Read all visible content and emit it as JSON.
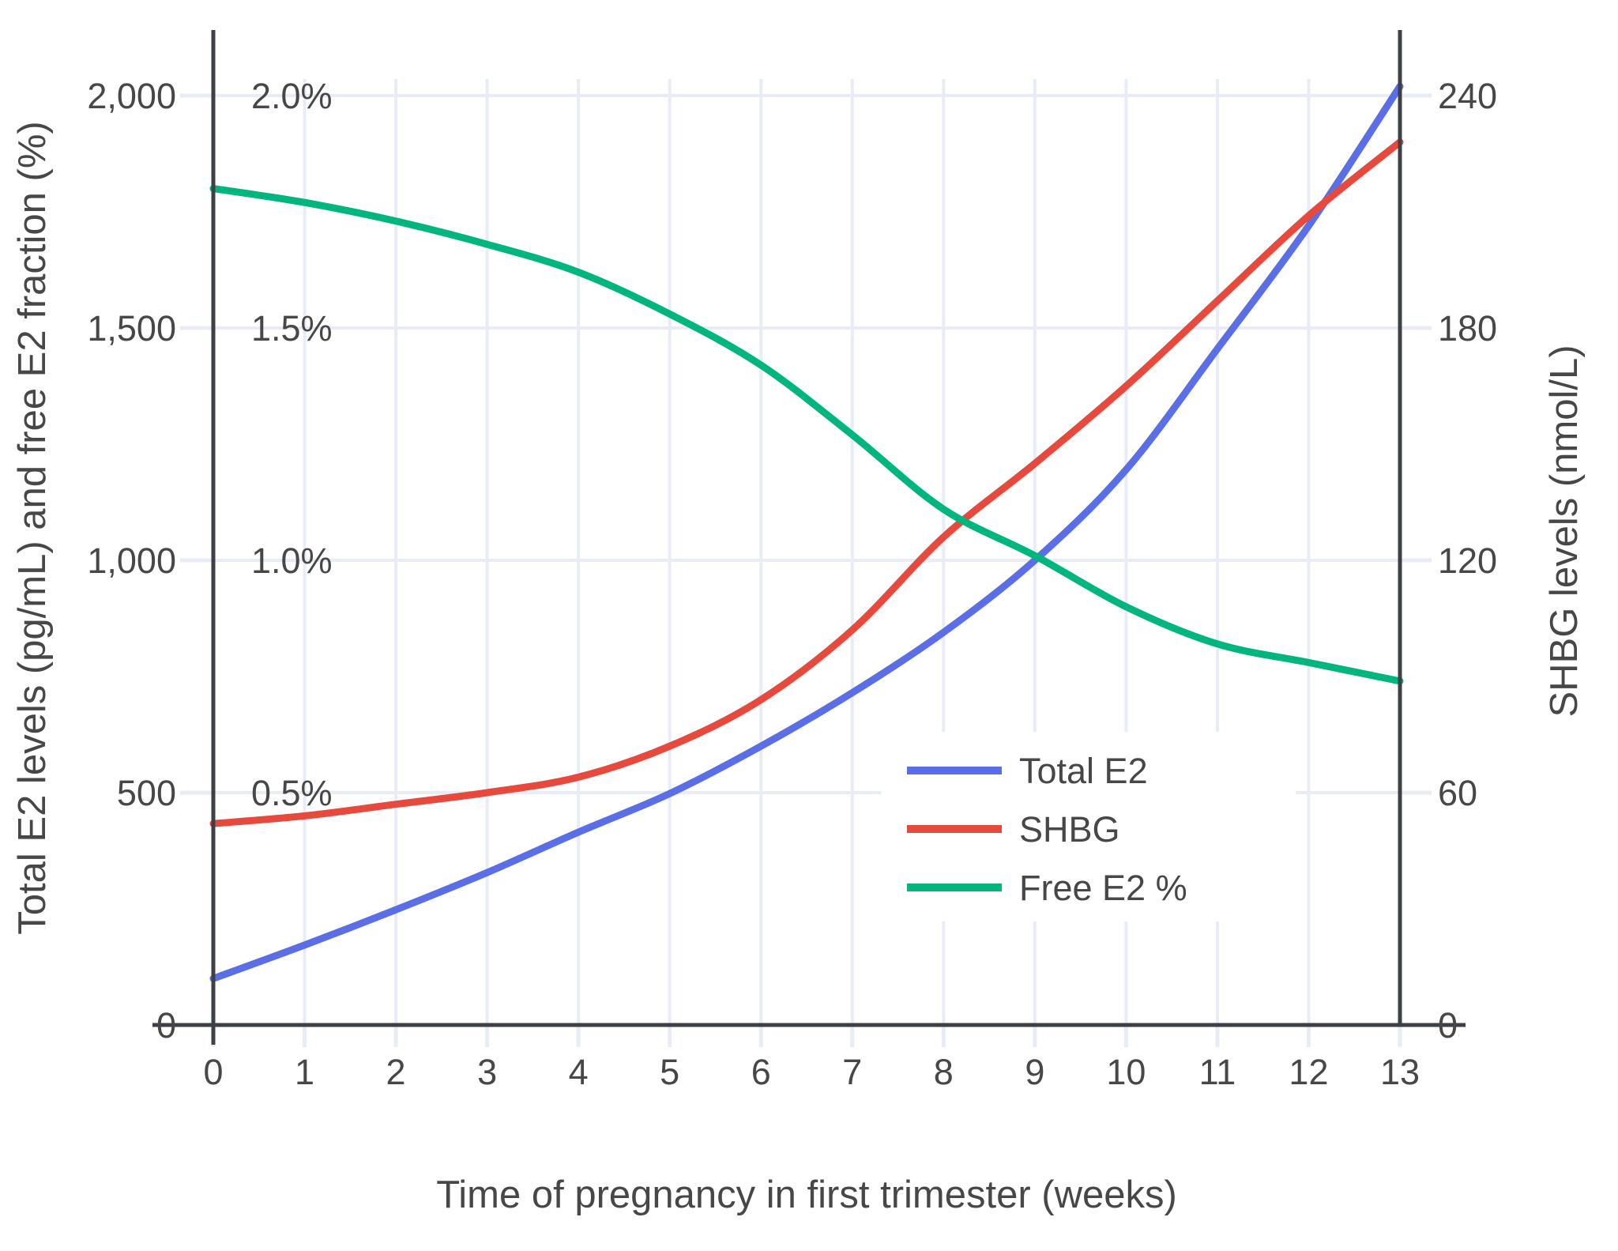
{
  "chart_data": {
    "type": "line",
    "title": "",
    "xlabel": "Time of pregnancy in first trimester (weeks)",
    "ylabel_left": "Total E2 levels (pg/mL) and free E2 fraction (%)",
    "ylabel_right": "SHBG levels (nmol/L)",
    "x": [
      0,
      1,
      2,
      3,
      4,
      5,
      6,
      7,
      8,
      9,
      10,
      11,
      12,
      13
    ],
    "x_tick_labels": [
      "0",
      "1",
      "2",
      "3",
      "4",
      "5",
      "6",
      "7",
      "8",
      "9",
      "10",
      "11",
      "12",
      "13"
    ],
    "xlim": [
      0,
      13
    ],
    "left_axis": {
      "tick_values": [
        0,
        500,
        1000,
        1500,
        2000
      ],
      "tick_labels": [
        "0",
        "500",
        "1,000",
        "1,500",
        "2,000"
      ],
      "range": [
        0,
        2125
      ]
    },
    "percent_axis": {
      "tick_values": [
        500,
        1000,
        1500,
        2000
      ],
      "tick_labels": [
        "0.5%",
        "1.0%",
        "1.5%",
        "2.0%"
      ]
    },
    "right_axis": {
      "tick_values": [
        0,
        60,
        120,
        180,
        240
      ],
      "tick_labels": [
        "0",
        "60",
        "120",
        "180",
        "240"
      ],
      "range": [
        0,
        255
      ]
    },
    "grid": true,
    "legend_position": "inside-right",
    "series": [
      {
        "name": "Total E2",
        "axis": "left",
        "color": "#5a6ee8",
        "units": "pg/mL",
        "values": [
          100,
          172,
          248,
          328,
          415,
          498,
          600,
          715,
          845,
          1000,
          1195,
          1455,
          1720,
          2020
        ]
      },
      {
        "name": "SHBG",
        "axis": "right",
        "color": "#e74a3c",
        "units": "nmol/L",
        "values": [
          52,
          54,
          57,
          60,
          64,
          72,
          84,
          102,
          126,
          145,
          165,
          187,
          209,
          228
        ]
      },
      {
        "name": "Free E2 %",
        "axis": "percent",
        "color": "#00b67e",
        "units": "%",
        "values": [
          1.8,
          1.77,
          1.73,
          1.68,
          1.62,
          1.53,
          1.42,
          1.27,
          1.11,
          1.01,
          0.9,
          0.82,
          0.78,
          0.74
        ]
      }
    ]
  },
  "colors": {
    "background": "#ffffff",
    "gridline": "#e8ecf6",
    "axis_line": "#3d4045",
    "tick_text": "#474747",
    "legend_background": "#ffffff",
    "total_e2": "#5a6ee8",
    "shbg": "#e74a3c",
    "free_e2": "#00b67e"
  }
}
